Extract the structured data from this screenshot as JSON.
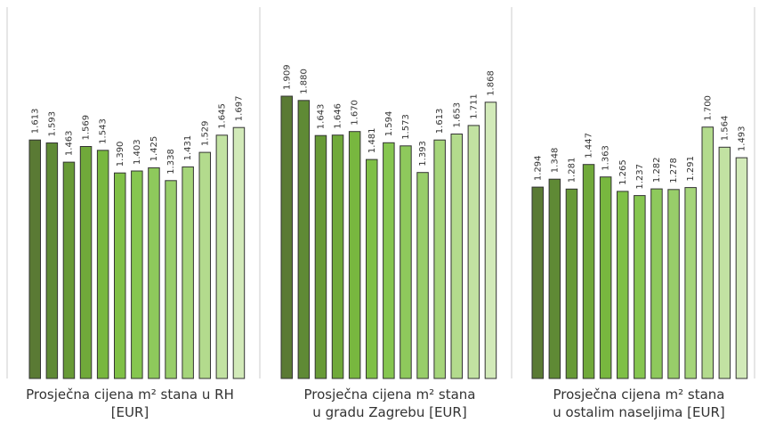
{
  "chart_data": {
    "type": "bar",
    "ylim": [
      0,
      2000
    ],
    "panels": [
      {
        "caption_lines": [
          "Prosječna cijena m² stana u RH",
          "[EUR]"
        ],
        "values": [
          1613,
          1593,
          1463,
          1569,
          1543,
          1390,
          1403,
          1425,
          1338,
          1431,
          1529,
          1645,
          1697
        ],
        "labels": [
          "1.613",
          "1.593",
          "1.463",
          "1.569",
          "1.543",
          "1.390",
          "1.403",
          "1.425",
          "1.338",
          "1.431",
          "1.529",
          "1.645",
          "1.697"
        ]
      },
      {
        "caption_lines": [
          "Prosječna cijena m² stana",
          "u gradu Zagrebu [EUR]"
        ],
        "values": [
          1909,
          1880,
          1643,
          1646,
          1670,
          1481,
          1594,
          1573,
          1393,
          1613,
          1653,
          1711,
          1868
        ],
        "labels": [
          "1.909",
          "1.880",
          "1.643",
          "1.646",
          "1.670",
          "1.481",
          "1.594",
          "1.573",
          "1.393",
          "1.613",
          "1.653",
          "1.711",
          "1.868"
        ]
      },
      {
        "caption_lines": [
          "Prosječna cijena m² stana",
          "u ostalim naseljima [EUR]"
        ],
        "values": [
          1294,
          1348,
          1281,
          1447,
          1363,
          1265,
          1237,
          1282,
          1278,
          1291,
          1700,
          1564,
          1493
        ],
        "labels": [
          "1.294",
          "1.348",
          "1.281",
          "1.447",
          "1.363",
          "1.265",
          "1.237",
          "1.282",
          "1.278",
          "1.291",
          "1.700",
          "1.564",
          "1.493"
        ]
      }
    ],
    "bar_colors": [
      "#5a7a34",
      "#5f8a35",
      "#679a36",
      "#70a93a",
      "#78b73f",
      "#7fc046",
      "#86c650",
      "#8ec95c",
      "#98ce6a",
      "#a5d57a",
      "#b3db8d",
      "#c2e2a2",
      "#d2eab9"
    ],
    "bar_stroke": "#333333",
    "divider_color": "#cccccc"
  }
}
